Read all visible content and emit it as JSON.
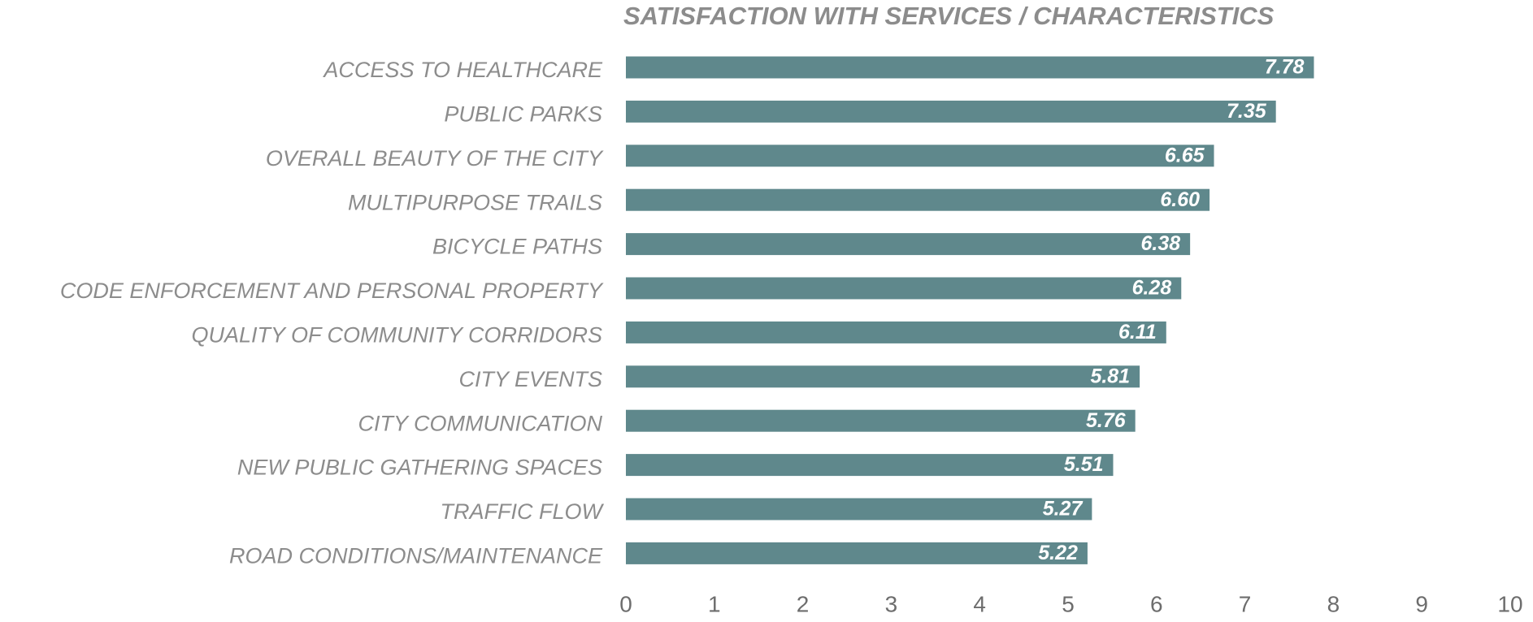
{
  "chart_data": {
    "type": "hbar",
    "title": "SATISFACTION WITH SERVICES / CHARACTERISTICS",
    "categories": [
      "ACCESS TO HEALTHCARE",
      "PUBLIC PARKS",
      "OVERALL BEAUTY OF THE CITY",
      "MULTIPURPOSE TRAILS",
      "BICYCLE PATHS",
      "CODE ENFORCEMENT AND PERSONAL PROPERTY",
      "QUALITY OF COMMUNITY CORRIDORS",
      "CITY EVENTS",
      "CITY COMMUNICATION",
      "NEW PUBLIC GATHERING SPACES",
      "TRAFFIC FLOW",
      "ROAD CONDITIONS/MAINTENANCE"
    ],
    "values": [
      7.78,
      7.35,
      6.65,
      6.6,
      6.38,
      6.28,
      6.11,
      5.81,
      5.76,
      5.51,
      5.27,
      5.22
    ],
    "value_labels": [
      "7.78",
      "7.35",
      "6.65",
      "6.60",
      "6.38",
      "6.28",
      "6.11",
      "5.81",
      "5.76",
      "5.51",
      "5.27",
      "5.22"
    ],
    "color": "#5f888c",
    "xlim": [
      0,
      10
    ],
    "xticks": [
      0,
      1,
      2,
      3,
      4,
      5,
      6,
      7,
      8,
      9,
      10
    ],
    "grid": false
  }
}
